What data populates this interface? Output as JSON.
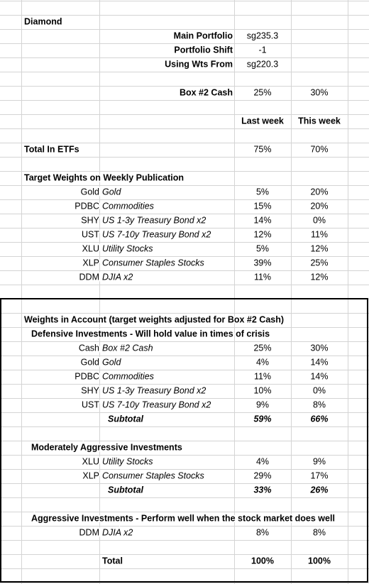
{
  "title": "Diamond",
  "settings": [
    {
      "label": "Main Portfolio",
      "value": "sg235.3"
    },
    {
      "label": "Portfolio Shift",
      "value": "-1"
    },
    {
      "label": "Using Wts From",
      "value": "sg220.3"
    }
  ],
  "cash_row": {
    "label": "Box #2 Cash",
    "last": "25%",
    "this": "30%"
  },
  "columns": [
    "Last week",
    "This week"
  ],
  "total_etfs": {
    "label": "Total In ETFs",
    "last": "75%",
    "this": "70%"
  },
  "target": {
    "heading": "Target Weights on Weekly Publication",
    "rows": [
      {
        "ticker": "Gold",
        "name": "Gold",
        "last": "5%",
        "this": "20%"
      },
      {
        "ticker": "PDBC",
        "name": "Commodities",
        "last": "15%",
        "this": "20%"
      },
      {
        "ticker": "SHY",
        "name": "US 1-3y Treasury Bond x2",
        "last": "14%",
        "this": "0%"
      },
      {
        "ticker": "UST",
        "name": "US 7-10y Treasury Bond x2",
        "last": "12%",
        "this": "11%"
      },
      {
        "ticker": "XLU",
        "name": "Utility Stocks",
        "last": "5%",
        "this": "12%"
      },
      {
        "ticker": "XLP",
        "name": "Consumer Staples Stocks",
        "last": "39%",
        "this": "25%"
      },
      {
        "ticker": "DDM",
        "name": "DJIA x2",
        "last": "11%",
        "this": "12%"
      }
    ]
  },
  "account": {
    "heading": "Weights in Account (target weights adjusted for Box #2 Cash)",
    "groups": [
      {
        "heading": "Defensive Investments - Will hold value in times of crisis",
        "rows": [
          {
            "ticker": "Cash",
            "name": "Box #2 Cash",
            "last": "25%",
            "this": "30%"
          },
          {
            "ticker": "Gold",
            "name": "Gold",
            "last": "4%",
            "this": "14%"
          },
          {
            "ticker": "PDBC",
            "name": "Commodities",
            "last": "11%",
            "this": "14%"
          },
          {
            "ticker": "SHY",
            "name": "US 1-3y Treasury Bond x2",
            "last": "10%",
            "this": "0%"
          },
          {
            "ticker": "UST",
            "name": "US 7-10y Treasury Bond x2",
            "last": "9%",
            "this": "8%"
          }
        ],
        "subtotal": {
          "label": "Subtotal",
          "last": "59%",
          "this": "66%"
        }
      },
      {
        "heading": "Moderately Aggressive Investments",
        "rows": [
          {
            "ticker": "XLU",
            "name": "Utility Stocks",
            "last": "4%",
            "this": "9%"
          },
          {
            "ticker": "XLP",
            "name": "Consumer Staples Stocks",
            "last": "29%",
            "this": "17%"
          }
        ],
        "subtotal": {
          "label": "Subtotal",
          "last": "33%",
          "this": "26%"
        }
      },
      {
        "heading": "Aggressive Investments - Perform well when the stock market does well",
        "rows": [
          {
            "ticker": "DDM",
            "name": "DJIA x2",
            "last": "8%",
            "this": "8%"
          }
        ]
      }
    ],
    "total": {
      "label": "Total",
      "last": "100%",
      "this": "100%"
    }
  }
}
